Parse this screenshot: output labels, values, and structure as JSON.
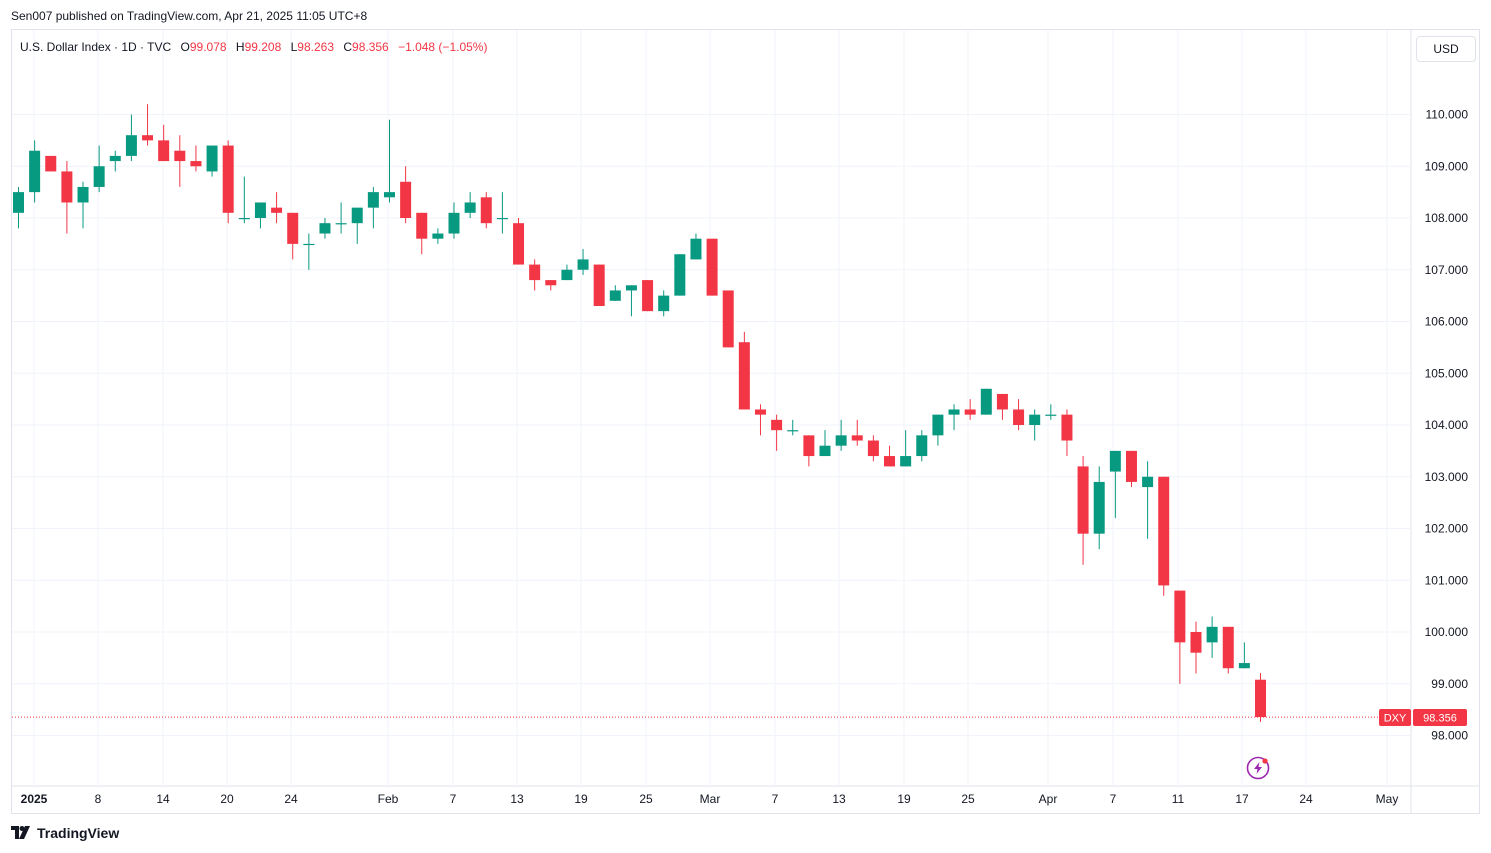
{
  "header": {
    "published": "Sen007 published on TradingView.com, Apr 21, 2025 11:05 UTC+8"
  },
  "legend": {
    "symbol": "U.S. Dollar Index · 1D · TVC",
    "open_label": "O",
    "open": "99.078",
    "high_label": "H",
    "high": "99.208",
    "low_label": "L",
    "low": "98.263",
    "close_label": "C",
    "close": "98.356",
    "change": "−1.048 (−1.05%)"
  },
  "currency_button": "USD",
  "price_tag": {
    "ticker": "DXY",
    "value": "98.356"
  },
  "footer": {
    "brand": "TradingView"
  },
  "colors": {
    "up": "#089981",
    "down": "#f23645",
    "grid": "#f0f3fa",
    "text": "#131722",
    "accent": "#9c27b0"
  },
  "icons": {
    "brand": "tradingview-logo-icon",
    "flash": "lightning-icon"
  },
  "chart_data": {
    "type": "candlestick",
    "symbol": "DXY",
    "ylim": [
      97.6,
      111.0
    ],
    "y_ticks": [
      "98.000",
      "99.000",
      "100.000",
      "101.000",
      "102.000",
      "103.000",
      "104.000",
      "105.000",
      "106.000",
      "107.000",
      "108.000",
      "109.000",
      "110.000"
    ],
    "x_ticks": [
      "2025",
      "8",
      "14",
      "20",
      "24",
      "Feb",
      "7",
      "13",
      "19",
      "25",
      "Mar",
      "7",
      "13",
      "19",
      "25",
      "Apr",
      "7",
      "11",
      "17",
      "24",
      "May"
    ],
    "last_price": 98.356,
    "candles": [
      {
        "o": 108.1,
        "h": 108.6,
        "l": 107.8,
        "c": 108.5
      },
      {
        "o": 108.5,
        "h": 109.5,
        "l": 108.3,
        "c": 109.3
      },
      {
        "o": 109.2,
        "h": 109.2,
        "l": 108.9,
        "c": 108.9
      },
      {
        "o": 108.9,
        "h": 109.1,
        "l": 107.7,
        "c": 108.3
      },
      {
        "o": 108.3,
        "h": 108.7,
        "l": 107.8,
        "c": 108.6
      },
      {
        "o": 108.6,
        "h": 109.4,
        "l": 108.5,
        "c": 109.0
      },
      {
        "o": 109.1,
        "h": 109.3,
        "l": 108.9,
        "c": 109.2
      },
      {
        "o": 109.2,
        "h": 110.0,
        "l": 109.1,
        "c": 109.6
      },
      {
        "o": 109.6,
        "h": 110.2,
        "l": 109.4,
        "c": 109.5
      },
      {
        "o": 109.5,
        "h": 109.8,
        "l": 109.1,
        "c": 109.1
      },
      {
        "o": 109.3,
        "h": 109.6,
        "l": 108.6,
        "c": 109.1
      },
      {
        "o": 109.1,
        "h": 109.4,
        "l": 108.9,
        "c": 109.0
      },
      {
        "o": 108.9,
        "h": 109.4,
        "l": 108.8,
        "c": 109.4
      },
      {
        "o": 109.4,
        "h": 109.5,
        "l": 107.9,
        "c": 108.1
      },
      {
        "o": 108.0,
        "h": 108.8,
        "l": 107.9,
        "c": 108.0
      },
      {
        "o": 108.0,
        "h": 108.3,
        "l": 107.8,
        "c": 108.3
      },
      {
        "o": 108.2,
        "h": 108.5,
        "l": 107.9,
        "c": 108.1
      },
      {
        "o": 108.1,
        "h": 108.1,
        "l": 107.2,
        "c": 107.5
      },
      {
        "o": 107.5,
        "h": 107.7,
        "l": 107.0,
        "c": 107.5
      },
      {
        "o": 107.7,
        "h": 108.0,
        "l": 107.6,
        "c": 107.9
      },
      {
        "o": 107.9,
        "h": 108.3,
        "l": 107.7,
        "c": 107.9
      },
      {
        "o": 107.9,
        "h": 108.2,
        "l": 107.5,
        "c": 108.2
      },
      {
        "o": 108.2,
        "h": 108.6,
        "l": 107.8,
        "c": 108.5
      },
      {
        "o": 108.4,
        "h": 109.9,
        "l": 108.3,
        "c": 108.5
      },
      {
        "o": 108.7,
        "h": 109.0,
        "l": 107.9,
        "c": 108.0
      },
      {
        "o": 108.1,
        "h": 108.1,
        "l": 107.3,
        "c": 107.6
      },
      {
        "o": 107.6,
        "h": 107.8,
        "l": 107.5,
        "c": 107.7
      },
      {
        "o": 107.7,
        "h": 108.3,
        "l": 107.6,
        "c": 108.1
      },
      {
        "o": 108.1,
        "h": 108.5,
        "l": 108.0,
        "c": 108.3
      },
      {
        "o": 108.4,
        "h": 108.5,
        "l": 107.8,
        "c": 107.9
      },
      {
        "o": 108.0,
        "h": 108.5,
        "l": 107.7,
        "c": 108.0
      },
      {
        "o": 107.9,
        "h": 108.0,
        "l": 107.1,
        "c": 107.1
      },
      {
        "o": 107.1,
        "h": 107.2,
        "l": 106.6,
        "c": 106.8
      },
      {
        "o": 106.8,
        "h": 106.8,
        "l": 106.6,
        "c": 106.7
      },
      {
        "o": 106.8,
        "h": 107.1,
        "l": 106.8,
        "c": 107.0
      },
      {
        "o": 107.0,
        "h": 107.4,
        "l": 106.9,
        "c": 107.2
      },
      {
        "o": 107.1,
        "h": 107.1,
        "l": 106.3,
        "c": 106.3
      },
      {
        "o": 106.4,
        "h": 106.7,
        "l": 106.4,
        "c": 106.6
      },
      {
        "o": 106.6,
        "h": 106.7,
        "l": 106.1,
        "c": 106.7
      },
      {
        "o": 106.8,
        "h": 106.8,
        "l": 106.2,
        "c": 106.2
      },
      {
        "o": 106.2,
        "h": 106.6,
        "l": 106.1,
        "c": 106.5
      },
      {
        "o": 106.5,
        "h": 107.3,
        "l": 106.5,
        "c": 107.3
      },
      {
        "o": 107.2,
        "h": 107.7,
        "l": 107.2,
        "c": 107.6
      },
      {
        "o": 107.6,
        "h": 107.6,
        "l": 106.5,
        "c": 106.5
      },
      {
        "o": 106.6,
        "h": 106.6,
        "l": 105.5,
        "c": 105.5
      },
      {
        "o": 105.6,
        "h": 105.8,
        "l": 104.3,
        "c": 104.3
      },
      {
        "o": 104.3,
        "h": 104.4,
        "l": 103.8,
        "c": 104.2
      },
      {
        "o": 104.1,
        "h": 104.2,
        "l": 103.5,
        "c": 103.9
      },
      {
        "o": 103.9,
        "h": 104.1,
        "l": 103.8,
        "c": 103.9
      },
      {
        "o": 103.8,
        "h": 103.8,
        "l": 103.2,
        "c": 103.4
      },
      {
        "o": 103.4,
        "h": 103.9,
        "l": 103.4,
        "c": 103.6
      },
      {
        "o": 103.6,
        "h": 104.1,
        "l": 103.5,
        "c": 103.8
      },
      {
        "o": 103.8,
        "h": 104.1,
        "l": 103.6,
        "c": 103.7
      },
      {
        "o": 103.7,
        "h": 103.8,
        "l": 103.3,
        "c": 103.4
      },
      {
        "o": 103.4,
        "h": 103.6,
        "l": 103.2,
        "c": 103.2
      },
      {
        "o": 103.2,
        "h": 103.9,
        "l": 103.2,
        "c": 103.4
      },
      {
        "o": 103.4,
        "h": 103.9,
        "l": 103.3,
        "c": 103.8
      },
      {
        "o": 103.8,
        "h": 104.2,
        "l": 103.6,
        "c": 104.2
      },
      {
        "o": 104.2,
        "h": 104.4,
        "l": 103.9,
        "c": 104.3
      },
      {
        "o": 104.3,
        "h": 104.5,
        "l": 104.1,
        "c": 104.2
      },
      {
        "o": 104.2,
        "h": 104.7,
        "l": 104.2,
        "c": 104.7
      },
      {
        "o": 104.6,
        "h": 104.6,
        "l": 104.1,
        "c": 104.3
      },
      {
        "o": 104.3,
        "h": 104.5,
        "l": 103.9,
        "c": 104.0
      },
      {
        "o": 104.0,
        "h": 104.3,
        "l": 103.7,
        "c": 104.2
      },
      {
        "o": 104.2,
        "h": 104.4,
        "l": 104.1,
        "c": 104.2
      },
      {
        "o": 104.2,
        "h": 104.3,
        "l": 103.4,
        "c": 103.7
      },
      {
        "o": 103.2,
        "h": 103.4,
        "l": 101.3,
        "c": 101.9
      },
      {
        "o": 101.9,
        "h": 103.2,
        "l": 101.6,
        "c": 102.9
      },
      {
        "o": 103.1,
        "h": 103.5,
        "l": 102.2,
        "c": 103.5
      },
      {
        "o": 103.5,
        "h": 103.5,
        "l": 102.8,
        "c": 102.9
      },
      {
        "o": 102.8,
        "h": 103.3,
        "l": 101.8,
        "c": 103.0
      },
      {
        "o": 103.0,
        "h": 103.0,
        "l": 100.7,
        "c": 100.9
      },
      {
        "o": 100.8,
        "h": 100.8,
        "l": 99.0,
        "c": 99.8
      },
      {
        "o": 100.0,
        "h": 100.2,
        "l": 99.2,
        "c": 99.6
      },
      {
        "o": 99.8,
        "h": 100.3,
        "l": 99.5,
        "c": 100.1
      },
      {
        "o": 100.1,
        "h": 100.1,
        "l": 99.2,
        "c": 99.3
      },
      {
        "o": 99.3,
        "h": 99.8,
        "l": 99.3,
        "c": 99.4
      },
      {
        "o": 99.078,
        "h": 99.208,
        "l": 98.263,
        "c": 98.356
      }
    ]
  }
}
